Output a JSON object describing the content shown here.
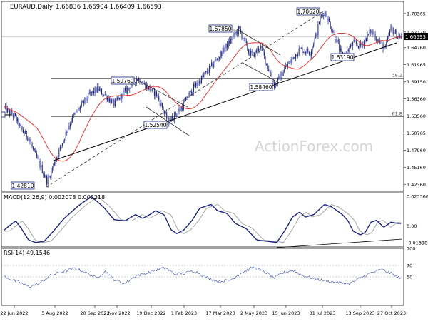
{
  "header": {
    "symbol": "EURAUD,Daily",
    "ohlc": "1.66836 1.66904 1.66409 1.66593"
  },
  "watermark": "ActionForex.com",
  "colors": {
    "candle": "#1a237e",
    "sma": "#e53935",
    "trendline": "#000000",
    "macd": "#1a237e",
    "signal": "#9e9e9e",
    "rsi": "#3f51b5",
    "frame": "#444444",
    "grid": "#e0e0e0",
    "label_border": "#1a237e",
    "label_bg": "#ffffff",
    "watermark": "#d5d5d5"
  },
  "chart_data": [
    {
      "type": "candlestick",
      "name": "price",
      "ylim": [
        1.4122,
        1.7233
      ],
      "y_ticks": [
        "1.70365",
        "1.67320",
        "1.64760",
        "1.61965",
        "1.59150",
        "1.56360",
        "1.53560",
        "1.50765",
        "1.47960",
        "1.45160",
        "1.42360"
      ],
      "current_price": "1.66593",
      "x_ticks": [
        "22 Jun 2022",
        "5 Aug 2022",
        "20 Sep 2022",
        "3 Nov 2022",
        "19 Dec 2022",
        "1 Feb 2023",
        "17 Mar 2023",
        "2 May 2023",
        "15 Jun 2023",
        "31 Jul 2023",
        "13 Sep 2023",
        "27 Oct 2023"
      ],
      "bars": 355,
      "pivots": [
        {
          "label": "1.42810",
          "value": 1.4281
        },
        {
          "label": "1.59760",
          "value": 1.5976
        },
        {
          "label": "1.52540",
          "value": 1.5254
        },
        {
          "label": "1.67850",
          "value": 1.6785
        },
        {
          "label": "1.58460",
          "value": 1.5846
        },
        {
          "label": "1.70620",
          "value": 1.7062
        },
        {
          "label": "1.63190",
          "value": 1.6319
        }
      ],
      "fib_levels": [
        {
          "label": "38.2",
          "value": 1.5976
        },
        {
          "label": "61.8",
          "value": 1.5344
        }
      ],
      "anchors": [
        {
          "value": 1.55
        },
        {
          "value": 1.535
        },
        {
          "value": 1.51
        },
        {
          "value": 1.5
        },
        {
          "value": 1.475
        },
        {
          "value": 1.45
        },
        {
          "value": 1.4281
        },
        {
          "value": 1.47
        },
        {
          "value": 1.53
        },
        {
          "value": 1.57
        },
        {
          "value": 1.58
        },
        {
          "value": 1.555
        },
        {
          "value": 1.5976
        },
        {
          "value": 1.57
        },
        {
          "value": 1.5254
        },
        {
          "value": 1.55
        },
        {
          "value": 1.58
        },
        {
          "value": 1.6
        },
        {
          "value": 1.63
        },
        {
          "value": 1.6785
        },
        {
          "value": 1.64
        },
        {
          "value": 1.635
        },
        {
          "value": 1.65
        },
        {
          "value": 1.5846
        },
        {
          "value": 1.615
        },
        {
          "value": 1.645
        },
        {
          "value": 1.64
        },
        {
          "value": 1.675
        },
        {
          "value": 1.695
        },
        {
          "value": 1.7062
        },
        {
          "value": 1.665
        },
        {
          "value": 1.6319
        },
        {
          "value": 1.655
        },
        {
          "value": 1.65
        },
        {
          "value": 1.675
        },
        {
          "value": 1.645
        },
        {
          "value": 1.68
        },
        {
          "value": 1.66593
        }
      ]
    },
    {
      "type": "line",
      "name": "MACD(12,26,9) 0.002078 0.002218",
      "ylim": [
        -0.0165,
        0.0262
      ],
      "y_ticks": [
        {
          "label": "0.023366",
          "value": 0.023366
        },
        {
          "label": "0.00",
          "value": 0.0
        },
        {
          "label": "-0.013186",
          "value": -0.013186
        }
      ],
      "anchors": [
        {
          "value": -0.004
        },
        {
          "value": 0.001
        },
        {
          "value": 0.004
        },
        {
          "value": -0.002
        },
        {
          "value": -0.011
        },
        {
          "value": -0.013
        },
        {
          "value": -0.012
        },
        {
          "value": -0.004
        },
        {
          "value": 0.006
        },
        {
          "value": 0.016
        },
        {
          "value": 0.0232
        },
        {
          "value": 0.015
        },
        {
          "value": 0.005
        },
        {
          "value": 0.004
        },
        {
          "value": 0.009
        },
        {
          "value": 0.006
        },
        {
          "value": 0.009
        },
        {
          "value": 0.012
        },
        {
          "value": 0.009
        },
        {
          "value": -0.003
        },
        {
          "value": -0.006
        },
        {
          "value": -0.003
        },
        {
          "value": 0.005
        },
        {
          "value": 0.014
        },
        {
          "value": 0.017
        },
        {
          "value": 0.012
        },
        {
          "value": 0.01
        },
        {
          "value": 0.002
        },
        {
          "value": -0.002
        },
        {
          "value": -0.011
        },
        {
          "value": -0.013
        },
        {
          "value": -0.003
        },
        {
          "value": 0.007
        },
        {
          "value": 0.011
        },
        {
          "value": 0.007
        },
        {
          "value": 0.009
        },
        {
          "value": 0.017
        },
        {
          "value": 0.015
        },
        {
          "value": 0.009
        },
        {
          "value": 0.004
        },
        {
          "value": -0.004
        },
        {
          "value": -0.007
        },
        {
          "value": -0.005
        },
        {
          "value": 0.003
        },
        {
          "value": 0.0045
        },
        {
          "value": -0.001
        },
        {
          "value": 0.003
        },
        {
          "value": 0.002078
        }
      ],
      "signal_lag_bars": 6
    },
    {
      "type": "line",
      "name": "RSI(14) 49.1546",
      "ylim": [
        0,
        100
      ],
      "levels": [
        70,
        50
      ],
      "y_ticks": [
        {
          "label": "100",
          "value": 100
        },
        {
          "label": "70",
          "value": 70
        },
        {
          "label": "50",
          "value": 50
        }
      ],
      "anchors": [
        {
          "value": 52
        },
        {
          "value": 46
        },
        {
          "value": 40
        },
        {
          "value": 33
        },
        {
          "value": 38
        },
        {
          "value": 52
        },
        {
          "value": 60
        },
        {
          "value": 65
        },
        {
          "value": 58
        },
        {
          "value": 48
        },
        {
          "value": 60
        },
        {
          "value": 45
        },
        {
          "value": 38
        },
        {
          "value": 52
        },
        {
          "value": 56
        },
        {
          "value": 62
        },
        {
          "value": 66
        },
        {
          "value": 55
        },
        {
          "value": 56
        },
        {
          "value": 61
        },
        {
          "value": 50
        },
        {
          "value": 42
        },
        {
          "value": 44
        },
        {
          "value": 58
        },
        {
          "value": 67
        },
        {
          "value": 58
        },
        {
          "value": 48
        },
        {
          "value": 56
        },
        {
          "value": 62
        },
        {
          "value": 52
        },
        {
          "value": 47
        },
        {
          "value": 42
        },
        {
          "value": 38
        },
        {
          "value": 57
        },
        {
          "value": 63
        },
        {
          "value": 56
        },
        {
          "value": 49.1546
        }
      ]
    }
  ]
}
